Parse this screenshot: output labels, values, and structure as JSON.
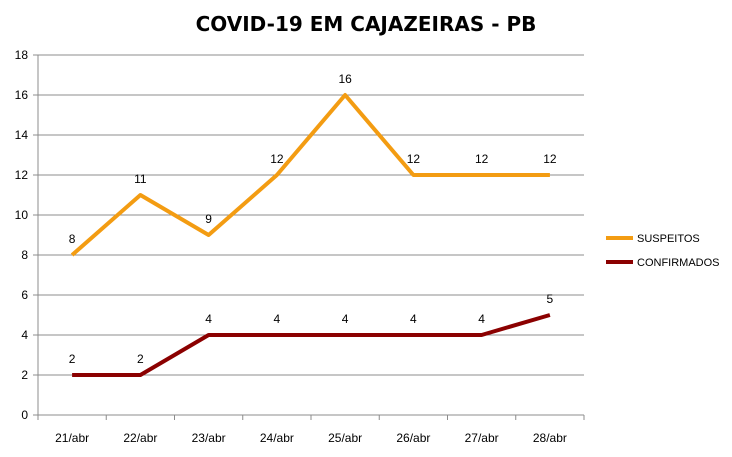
{
  "chart_data": {
    "type": "line",
    "title": "COVID-19 EM CAJAZEIRAS - PB",
    "xlabel": "",
    "ylabel": "",
    "categories": [
      "21/abr",
      "22/abr",
      "23/abr",
      "24/abr",
      "25/abr",
      "26/abr",
      "27/abr",
      "28/abr"
    ],
    "ylim": [
      0,
      18
    ],
    "yticks": [
      0,
      2,
      4,
      6,
      8,
      10,
      12,
      14,
      16,
      18
    ],
    "grid": true,
    "legend_position": "right",
    "series": [
      {
        "name": "SUSPEITOS",
        "values": [
          8,
          11,
          9,
          12,
          16,
          12,
          12,
          12
        ],
        "color": "#f39c12"
      },
      {
        "name": "CONFIRMADOS",
        "values": [
          2,
          2,
          4,
          4,
          4,
          4,
          4,
          5
        ],
        "color": "#8b0000"
      }
    ]
  }
}
